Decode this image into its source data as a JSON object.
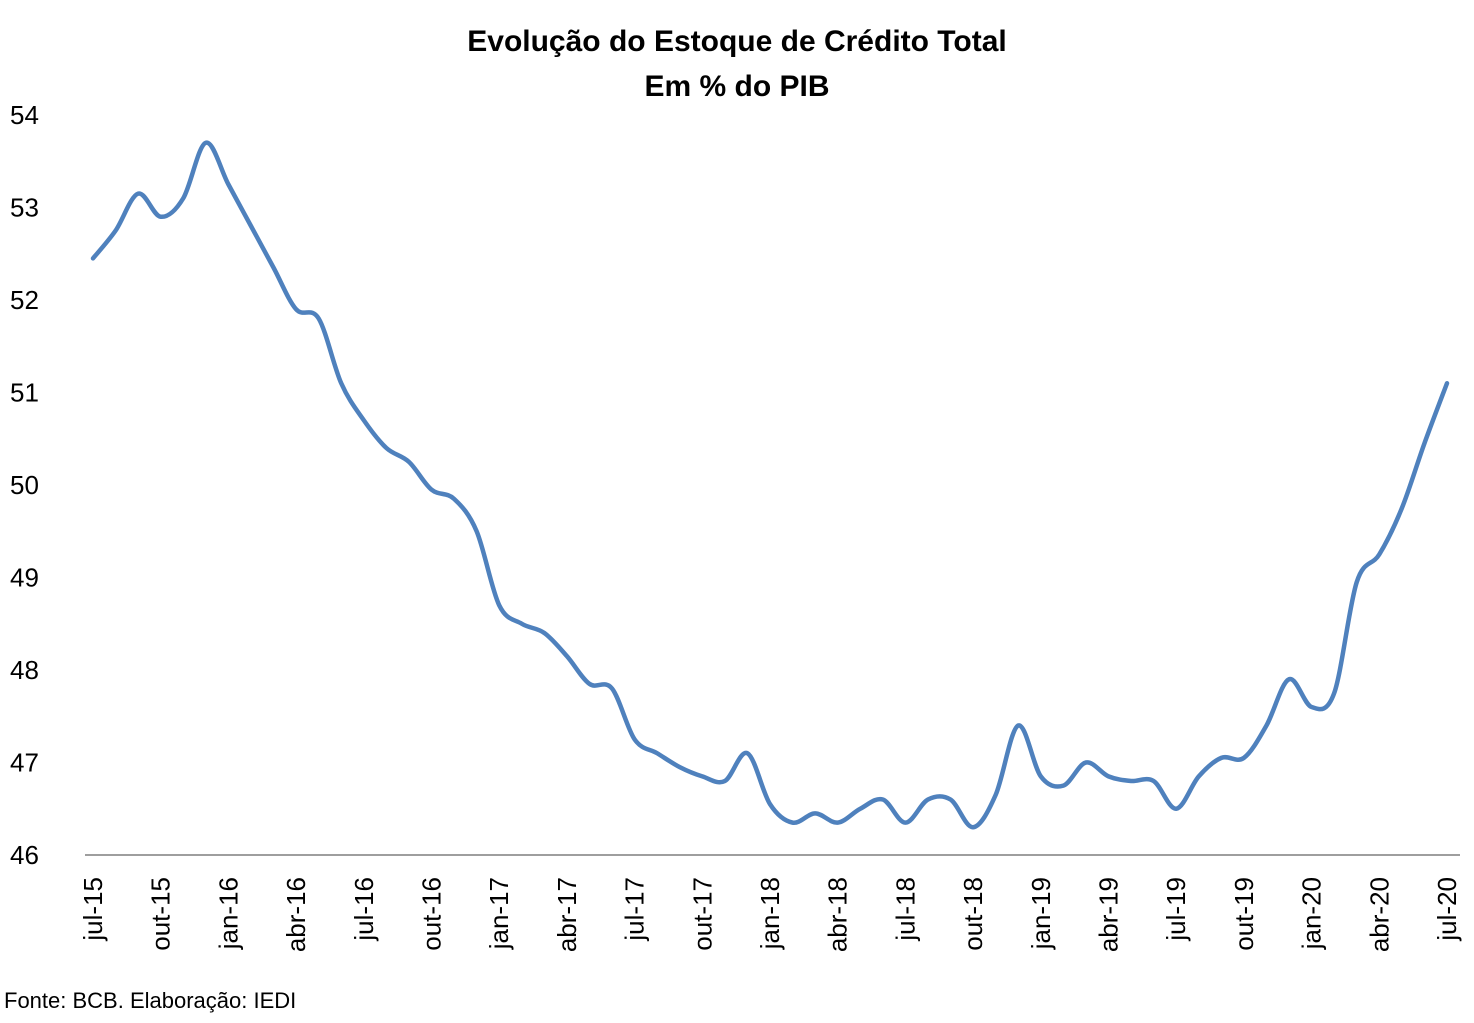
{
  "chart_data": {
    "type": "line",
    "title": "Evolução do Estoque de Crédito Total",
    "subtitle": "Em % do PIB",
    "xlabel": "",
    "ylabel": "",
    "ylim": [
      46,
      54
    ],
    "yticks": [
      46,
      47,
      48,
      49,
      50,
      51,
      52,
      53,
      54
    ],
    "grid": false,
    "legend": "none",
    "line_color": "#4F81BD",
    "xtick_labels": [
      "jul-15",
      "out-15",
      "jan-16",
      "abr-16",
      "jul-16",
      "out-16",
      "jan-17",
      "abr-17",
      "jul-17",
      "out-17",
      "jan-18",
      "abr-18",
      "jul-18",
      "out-18",
      "jan-19",
      "abr-19",
      "jul-19",
      "out-19",
      "jan-20",
      "abr-20",
      "jul-20"
    ],
    "x": [
      "jul-15",
      "ago-15",
      "set-15",
      "out-15",
      "nov-15",
      "dez-15",
      "jan-16",
      "fev-16",
      "mar-16",
      "abr-16",
      "mai-16",
      "jun-16",
      "jul-16",
      "ago-16",
      "set-16",
      "out-16",
      "nov-16",
      "dez-16",
      "jan-17",
      "fev-17",
      "mar-17",
      "abr-17",
      "mai-17",
      "jun-17",
      "jul-17",
      "ago-17",
      "set-17",
      "out-17",
      "nov-17",
      "dez-17",
      "jan-18",
      "fev-18",
      "mar-18",
      "abr-18",
      "mai-18",
      "jun-18",
      "jul-18",
      "ago-18",
      "set-18",
      "out-18",
      "nov-18",
      "dez-18",
      "jan-19",
      "fev-19",
      "mar-19",
      "abr-19",
      "mai-19",
      "jun-19",
      "jul-19",
      "ago-19",
      "set-19",
      "out-19",
      "nov-19",
      "dez-19",
      "jan-20",
      "fev-20",
      "mar-20",
      "abr-20",
      "mai-20",
      "jun-20",
      "jul-20"
    ],
    "series": [
      {
        "values": [
          52.45,
          52.75,
          53.15,
          52.9,
          53.1,
          53.7,
          53.25,
          52.8,
          52.35,
          51.9,
          51.8,
          51.1,
          50.7,
          50.4,
          50.25,
          49.95,
          49.85,
          49.5,
          48.7,
          48.5,
          48.4,
          48.15,
          47.85,
          47.8,
          47.25,
          47.1,
          46.95,
          46.85,
          46.8,
          47.1,
          46.55,
          46.35,
          46.45,
          46.35,
          46.5,
          46.6,
          46.35,
          46.6,
          46.6,
          46.3,
          46.65,
          47.4,
          46.85,
          46.75,
          47.0,
          46.85,
          46.8,
          46.8,
          46.5,
          46.85,
          47.05,
          47.05,
          47.4,
          47.9,
          47.6,
          47.75,
          48.95,
          49.25,
          49.75,
          50.45,
          51.1
        ]
      }
    ],
    "source": "Fonte: BCB. Elaboração: IEDI"
  }
}
